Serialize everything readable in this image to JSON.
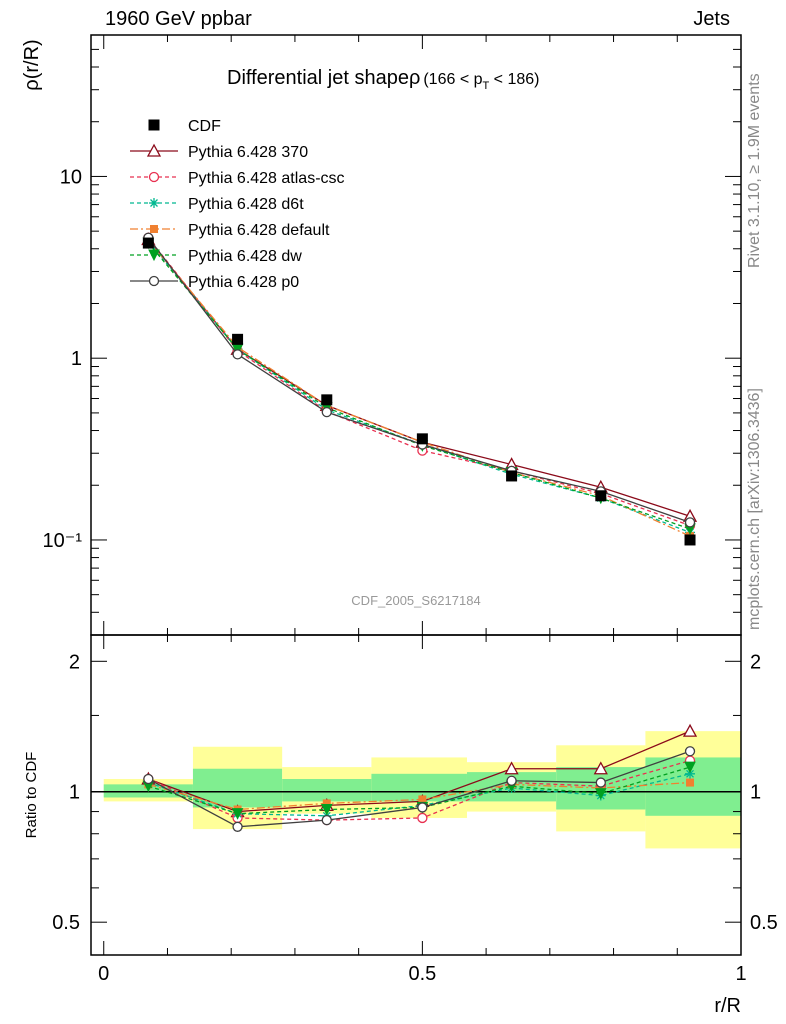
{
  "header": {
    "left": "1960 GeV ppbar",
    "right": "Jets"
  },
  "side_labels": {
    "rivet": "Rivet 3.1.10, ≥ 1.9M events",
    "mcplots": "mcplots.cern.ch [arXiv:1306.3436]"
  },
  "chart_data": {
    "type": "line",
    "title": "Differential jet shapeρ (166 < p_T < 186)",
    "title_main": "Differential jet shapeρ",
    "title_range": "(166 < p",
    "title_sub": "T",
    "title_end": " < 186)",
    "watermark": "CDF_2005_S6217184",
    "xlabel": "r/R",
    "ylabel": "ρ(r/R)",
    "ratio_ylabel": "Ratio to CDF",
    "xlim": [
      -0.02,
      1.0
    ],
    "ylim": [
      0.03,
      60
    ],
    "yscale": "log",
    "ratio_ylim": [
      0.42,
      2.3
    ],
    "ratio_yscale": "log",
    "x_ticks": [
      "0",
      "0.5",
      "1"
    ],
    "y_ticks": [
      "10",
      "1",
      "10⁻¹"
    ],
    "ratio_ticks": [
      "2",
      "1",
      "0.5"
    ],
    "x": [
      0.07,
      0.21,
      0.35,
      0.5,
      0.64,
      0.78,
      0.92
    ],
    "reference": {
      "name": "CDF",
      "values": [
        4.3,
        1.27,
        0.59,
        0.36,
        0.225,
        0.175,
        0.1
      ],
      "bands": [
        {
          "x0": 0.0,
          "x1": 0.14,
          "g": [
            0.97,
            1.04
          ],
          "y": [
            0.95,
            1.07
          ]
        },
        {
          "x0": 0.14,
          "x1": 0.28,
          "g": [
            0.92,
            1.13
          ],
          "y": [
            0.82,
            1.27
          ]
        },
        {
          "x0": 0.28,
          "x1": 0.42,
          "g": [
            0.95,
            1.07
          ],
          "y": [
            0.89,
            1.14
          ]
        },
        {
          "x0": 0.42,
          "x1": 0.57,
          "g": [
            0.95,
            1.1
          ],
          "y": [
            0.87,
            1.2
          ]
        },
        {
          "x0": 0.57,
          "x1": 0.71,
          "g": [
            0.95,
            1.11
          ],
          "y": [
            0.9,
            1.17
          ]
        },
        {
          "x0": 0.71,
          "x1": 0.85,
          "g": [
            0.91,
            1.14
          ],
          "y": [
            0.81,
            1.28
          ]
        },
        {
          "x0": 0.85,
          "x1": 1.0,
          "g": [
            0.88,
            1.2
          ],
          "y": [
            0.74,
            1.38
          ]
        }
      ]
    },
    "series": [
      {
        "name": "Pythia 6.428 370",
        "color": "#8b0a1a",
        "dash": "",
        "marker": "triangle",
        "values": [
          4.5,
          1.12,
          0.55,
          0.345,
          0.26,
          0.195,
          0.135
        ],
        "ratio": [
          1.07,
          0.9,
          0.93,
          0.95,
          1.13,
          1.13,
          1.38
        ]
      },
      {
        "name": "Pythia 6.428 atlas-csc",
        "color": "#e83050",
        "dash": "4,3",
        "marker": "open-circle",
        "values": [
          4.6,
          1.1,
          0.51,
          0.31,
          0.24,
          0.18,
          0.12
        ],
        "ratio": [
          1.07,
          0.87,
          0.86,
          0.87,
          1.05,
          1.03,
          1.18
        ]
      },
      {
        "name": "Pythia 6.428 d6t",
        "color": "#00b890",
        "dash": "4,3",
        "marker": "star",
        "values": [
          4.4,
          1.12,
          0.52,
          0.335,
          0.23,
          0.17,
          0.11
        ],
        "ratio": [
          1.05,
          0.89,
          0.88,
          0.93,
          1.02,
          0.98,
          1.1
        ]
      },
      {
        "name": "Pythia 6.428 default",
        "color": "#f08030",
        "dash": "8,3,2,3",
        "marker": "square",
        "values": [
          4.45,
          1.15,
          0.55,
          0.345,
          0.235,
          0.175,
          0.105
        ],
        "ratio": [
          1.04,
          0.91,
          0.94,
          0.96,
          1.04,
          1.02,
          1.05
        ]
      },
      {
        "name": "Pythia 6.428 dw",
        "color": "#00a020",
        "dash": "4,3",
        "marker": "down-triangle",
        "values": [
          4.3,
          1.12,
          0.535,
          0.33,
          0.235,
          0.17,
          0.115
        ],
        "ratio": [
          1.03,
          0.89,
          0.91,
          0.92,
          1.03,
          0.99,
          1.14
        ]
      },
      {
        "name": "Pythia 6.428 p0",
        "color": "#404040",
        "dash": "",
        "marker": "open-circle",
        "values": [
          4.6,
          1.05,
          0.505,
          0.335,
          0.24,
          0.185,
          0.125
        ],
        "ratio": [
          1.07,
          0.83,
          0.86,
          0.92,
          1.06,
          1.05,
          1.24
        ]
      }
    ]
  }
}
